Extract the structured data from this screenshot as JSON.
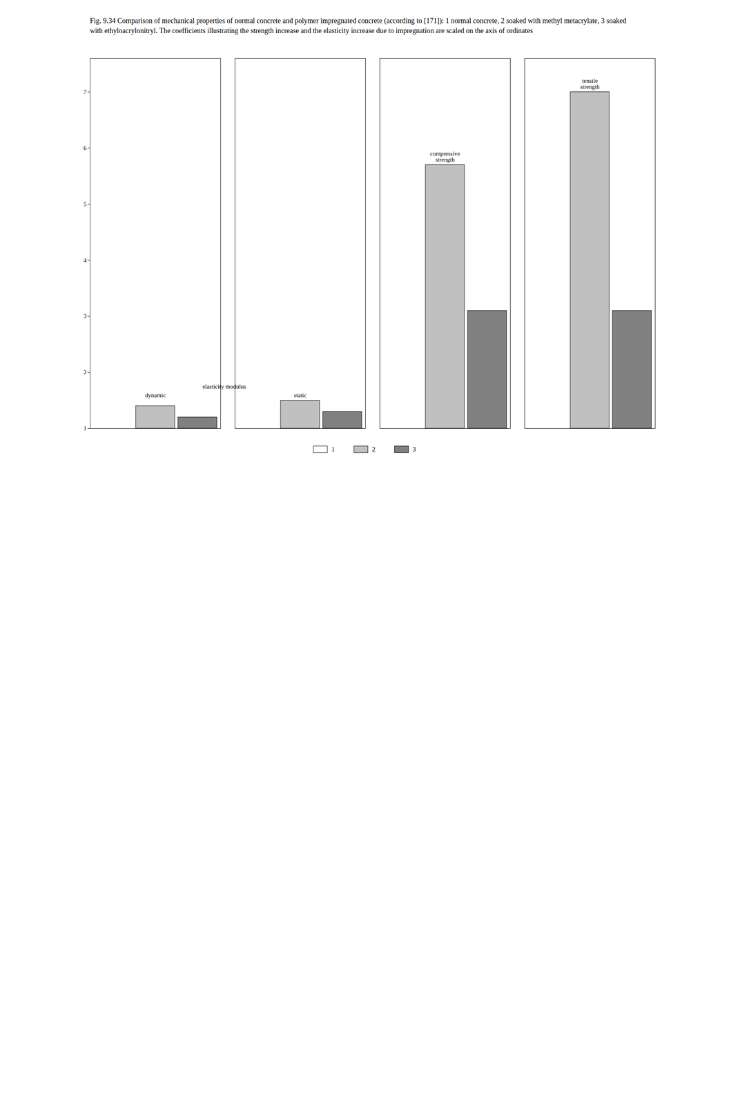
{
  "chart_data": {
    "type": "bar",
    "title": "Fig. 9.34 Comparison of mechanical properties of normal concrete and polymer impregnated concrete (according to [171]): 1 normal concrete, 2 soaked with methyl metacrylate, 3 soaked with ethyloacrylonitryl. The coefficients illustrating the strength increase and the elasticity increase due to impregnation are scaled on the axis of ordinates",
    "categories": [
      null,
      null,
      null,
      null
    ],
    "series": [
      {
        "name": "1",
        "color": "#ffffff",
        "values": [
          1.0,
          1.0,
          1.0,
          1.0
        ]
      },
      {
        "name": "2",
        "color": "#c0c0c0",
        "values": [
          1.4,
          1.5,
          5.7,
          7.0
        ]
      },
      {
        "name": "3",
        "color": "#808080",
        "values": [
          1.2,
          1.3,
          3.1,
          3.1
        ]
      }
    ],
    "ylim": [
      1,
      7.6
    ],
    "yticks": [
      1,
      2,
      3,
      4,
      5,
      6,
      7
    ],
    "annotations": [
      "elasticity modulus",
      "dynamic",
      "static",
      "compressive\nstrength",
      "tensile\nstrength"
    ],
    "grid": false,
    "legend": "bottom"
  }
}
